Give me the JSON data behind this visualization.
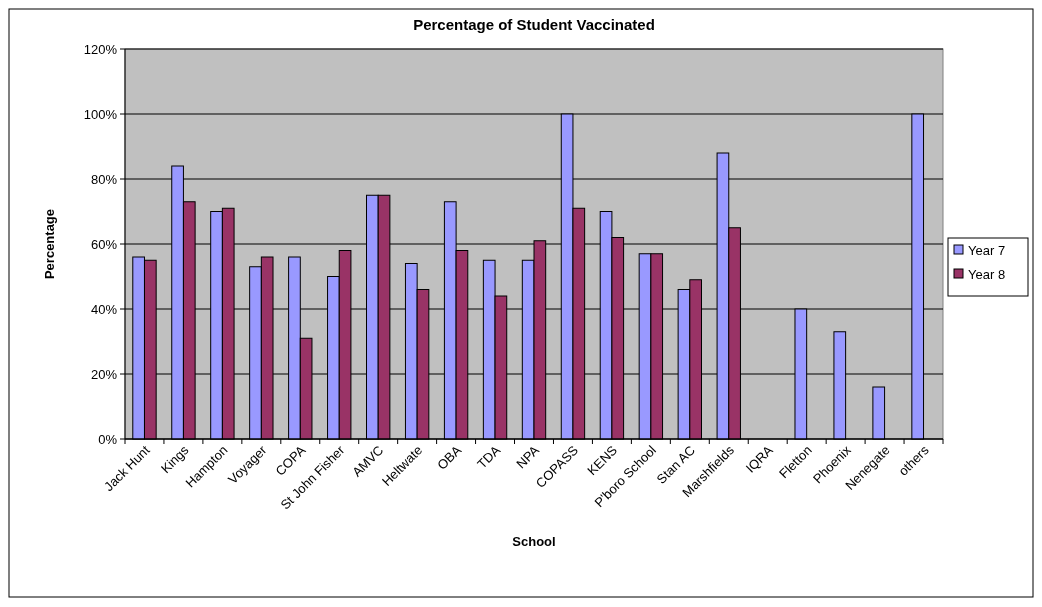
{
  "chart_data": {
    "type": "bar",
    "title": "Percentage of Student Vaccinated",
    "xlabel": "School",
    "ylabel": "Percentage",
    "categories": [
      "Jack Hunt",
      "Kings",
      "Hampton",
      "Voyager",
      "COPA",
      "St John Fisher",
      "AMVC",
      "Heltwate",
      "OBA",
      "TDA",
      "NPA",
      "COPASS",
      "KENS",
      "P'boro School",
      "Stan AC",
      "Marshfields",
      "IQRA",
      "Fletton",
      "Phoenix",
      "Nenegate",
      "others"
    ],
    "series": [
      {
        "name": "Year 7",
        "color": "#9999ff",
        "values": [
          56,
          84,
          70,
          53,
          56,
          50,
          75,
          54,
          73,
          55,
          55,
          100,
          70,
          57,
          46,
          88,
          null,
          40,
          33,
          16,
          100
        ]
      },
      {
        "name": "Year 8",
        "color": "#993366",
        "values": [
          55,
          73,
          71,
          56,
          31,
          58,
          75,
          46,
          58,
          44,
          61,
          71,
          62,
          57,
          49,
          65,
          null,
          null,
          null,
          null,
          null
        ]
      }
    ],
    "ylim": [
      0,
      120
    ],
    "yticks": [
      {
        "value": 0,
        "label": "0%"
      },
      {
        "value": 20,
        "label": "20%"
      },
      {
        "value": 40,
        "label": "40%"
      },
      {
        "value": 60,
        "label": "60%"
      },
      {
        "value": 80,
        "label": "80%"
      },
      {
        "value": 100,
        "label": "100%"
      },
      {
        "value": 120,
        "label": "120%"
      }
    ],
    "grid": "y",
    "legend": "right"
  }
}
